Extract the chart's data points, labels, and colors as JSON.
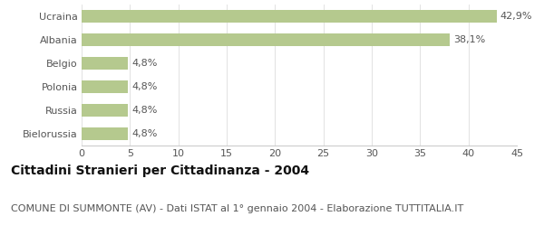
{
  "categories": [
    "Ucraina",
    "Albania",
    "Belgio",
    "Polonia",
    "Russia",
    "Bielorussia"
  ],
  "values": [
    42.9,
    38.1,
    4.8,
    4.8,
    4.8,
    4.8
  ],
  "labels": [
    "42,9%",
    "38,1%",
    "4,8%",
    "4,8%",
    "4,8%",
    "4,8%"
  ],
  "bar_color": "#b5c98e",
  "background_color": "#ffffff",
  "title": "Cittadini Stranieri per Cittadinanza - 2004",
  "subtitle": "COMUNE DI SUMMONTE (AV) - Dati ISTAT al 1° gennaio 2004 - Elaborazione TUTTITALIA.IT",
  "xlim": [
    0,
    45
  ],
  "xticks": [
    0,
    5,
    10,
    15,
    20,
    25,
    30,
    35,
    40,
    45
  ],
  "title_fontsize": 10,
  "subtitle_fontsize": 8,
  "label_fontsize": 8,
  "tick_fontsize": 8,
  "bar_height": 0.55
}
